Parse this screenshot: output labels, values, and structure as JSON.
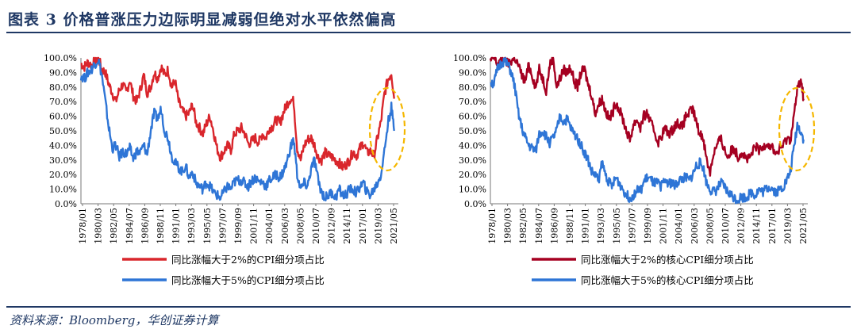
{
  "header": {
    "title": "图表 3   价格普涨压力边际明显减弱但绝对水平依然偏高"
  },
  "footer": {
    "source": "资料来源：Bloomberg，华创证券计算"
  },
  "colors": {
    "red": "#c00000",
    "darkred": "#a50021",
    "blue": "#2e75d6",
    "highlight": "#f5b700",
    "brand": "#1f3864"
  },
  "chart_data": [
    {
      "type": "line",
      "y_ticks": [
        "100.0%",
        "90.0%",
        "80.0%",
        "70.0%",
        "60.0%",
        "50.0%",
        "40.0%",
        "30.0%",
        "20.0%",
        "10.0%",
        "0.0%"
      ],
      "ylim": [
        0,
        100
      ],
      "xlim": [
        1978.0,
        2023.5
      ],
      "x_ticks": [
        "1978/01",
        "1980/03",
        "1982/05",
        "1984/07",
        "1986/09",
        "1988/11",
        "1991/01",
        "1993/03",
        "1995/05",
        "1997/07",
        "1999/09",
        "2001/11",
        "2004/01",
        "2006/03",
        "2008/05",
        "2010/07",
        "2012/09",
        "2014/11",
        "2017/01",
        "2019/03",
        "2021/05"
      ],
      "annotation": "dashed ellipse highlighting 2021–2022",
      "series": [
        {
          "name": "同比涨幅大于2%的CPI细分项占比",
          "color": "#d9262c",
          "x": [
            1978.0,
            1978.5,
            1979.0,
            1979.5,
            1980.0,
            1980.5,
            1981.0,
            1981.5,
            1982.0,
            1982.5,
            1983.0,
            1983.5,
            1984.0,
            1984.5,
            1985.0,
            1985.5,
            1986.0,
            1986.5,
            1987.0,
            1987.5,
            1988.0,
            1988.5,
            1989.0,
            1989.5,
            1990.0,
            1990.5,
            1991.0,
            1991.5,
            1992.0,
            1992.5,
            1993.0,
            1993.5,
            1994.0,
            1994.5,
            1995.0,
            1995.5,
            1996.0,
            1996.5,
            1997.0,
            1997.5,
            1998.0,
            1998.5,
            1999.0,
            1999.5,
            2000.0,
            2000.5,
            2001.0,
            2001.5,
            2002.0,
            2002.5,
            2003.0,
            2003.5,
            2004.0,
            2004.5,
            2005.0,
            2005.5,
            2006.0,
            2006.5,
            2007.0,
            2007.5,
            2008.0,
            2008.5,
            2009.0,
            2009.5,
            2010.0,
            2010.5,
            2011.0,
            2011.5,
            2012.0,
            2012.5,
            2013.0,
            2013.5,
            2014.0,
            2014.5,
            2015.0,
            2015.5,
            2016.0,
            2016.5,
            2017.0,
            2017.5,
            2018.0,
            2018.5,
            2019.0,
            2019.5,
            2020.0,
            2020.5,
            2021.0,
            2021.5,
            2022.0,
            2022.5,
            2022.9
          ],
          "values": [
            96,
            94,
            97,
            95,
            98,
            100,
            92,
            90,
            82,
            76,
            70,
            78,
            82,
            76,
            85,
            74,
            70,
            78,
            88,
            76,
            80,
            90,
            86,
            94,
            88,
            92,
            80,
            84,
            70,
            64,
            60,
            62,
            68,
            56,
            52,
            48,
            55,
            60,
            50,
            38,
            32,
            36,
            40,
            37,
            48,
            50,
            52,
            48,
            41,
            43,
            45,
            42,
            48,
            45,
            52,
            53,
            58,
            55,
            62,
            68,
            72,
            70,
            38,
            30,
            40,
            44,
            45,
            40,
            32,
            30,
            35,
            33,
            32,
            30,
            28,
            25,
            27,
            30,
            36,
            33,
            38,
            42,
            35,
            36,
            33,
            45,
            56,
            75,
            85,
            90,
            72
          ]
        },
        {
          "name": "同比涨幅大于5%的CPI细分项占比",
          "color": "#2e75d6",
          "x": [
            1978.0,
            1978.5,
            1979.0,
            1979.5,
            1980.0,
            1980.5,
            1981.0,
            1981.5,
            1982.0,
            1982.5,
            1983.0,
            1983.5,
            1984.0,
            1984.5,
            1985.0,
            1985.5,
            1986.0,
            1986.5,
            1987.0,
            1987.5,
            1988.0,
            1988.5,
            1989.0,
            1989.5,
            1990.0,
            1990.5,
            1991.0,
            1991.5,
            1992.0,
            1992.5,
            1993.0,
            1993.5,
            1994.0,
            1994.5,
            1995.0,
            1995.5,
            1996.0,
            1996.5,
            1997.0,
            1997.5,
            1998.0,
            1998.5,
            1999.0,
            1999.5,
            2000.0,
            2000.5,
            2001.0,
            2001.5,
            2002.0,
            2002.5,
            2003.0,
            2003.5,
            2004.0,
            2004.5,
            2005.0,
            2005.5,
            2006.0,
            2006.5,
            2007.0,
            2007.5,
            2008.0,
            2008.5,
            2009.0,
            2009.5,
            2010.0,
            2010.5,
            2011.0,
            2011.5,
            2012.0,
            2012.5,
            2013.0,
            2013.5,
            2014.0,
            2014.5,
            2015.0,
            2015.5,
            2016.0,
            2016.5,
            2017.0,
            2017.5,
            2018.0,
            2018.5,
            2019.0,
            2019.5,
            2020.0,
            2020.5,
            2021.0,
            2021.5,
            2022.0,
            2022.5,
            2022.9
          ],
          "values": [
            88,
            86,
            90,
            92,
            96,
            99,
            88,
            70,
            52,
            38,
            40,
            32,
            36,
            34,
            38,
            31,
            36,
            35,
            40,
            34,
            50,
            62,
            58,
            65,
            50,
            45,
            33,
            28,
            25,
            22,
            26,
            18,
            22,
            14,
            12,
            10,
            15,
            12,
            8,
            6,
            4,
            8,
            12,
            10,
            15,
            16,
            16,
            14,
            12,
            16,
            18,
            15,
            15,
            12,
            16,
            18,
            20,
            18,
            22,
            28,
            38,
            44,
            20,
            10,
            14,
            12,
            24,
            30,
            16,
            8,
            4,
            6,
            8,
            4,
            10,
            6,
            6,
            10,
            10,
            7,
            12,
            14,
            8,
            6,
            10,
            14,
            20,
            36,
            55,
            66,
            50
          ]
        }
      ]
    },
    {
      "type": "line",
      "y_ticks": [
        "100.0%",
        "90.0%",
        "80.0%",
        "70.0%",
        "60.0%",
        "50.0%",
        "40.0%",
        "30.0%",
        "20.0%",
        "10.0%",
        "0.0%"
      ],
      "ylim": [
        0,
        100
      ],
      "xlim": [
        1978.0,
        2023.5
      ],
      "x_ticks": [
        "1978/01",
        "1980/03",
        "1982/05",
        "1984/07",
        "1986/09",
        "1988/11",
        "1991/01",
        "1993/03",
        "1995/05",
        "1997/07",
        "1999/09",
        "2001/11",
        "2004/01",
        "2006/03",
        "2008/05",
        "2010/07",
        "2012/09",
        "2014/11",
        "2017/01",
        "2019/03",
        "2021/05"
      ],
      "annotation": "dashed ellipse highlighting 2021–2022",
      "series": [
        {
          "name": "同比涨幅大于2%的核心CPI细分项占比",
          "color": "#a50021",
          "x": [
            1978.0,
            1978.5,
            1979.0,
            1979.5,
            1980.0,
            1980.5,
            1981.0,
            1981.5,
            1982.0,
            1982.5,
            1983.0,
            1983.5,
            1984.0,
            1984.5,
            1985.0,
            1985.5,
            1986.0,
            1986.5,
            1987.0,
            1987.5,
            1988.0,
            1988.5,
            1989.0,
            1989.5,
            1990.0,
            1990.5,
            1991.0,
            1991.5,
            1992.0,
            1992.5,
            1993.0,
            1993.5,
            1994.0,
            1994.5,
            1995.0,
            1995.5,
            1996.0,
            1996.5,
            1997.0,
            1997.5,
            1998.0,
            1998.5,
            1999.0,
            1999.5,
            2000.0,
            2000.5,
            2001.0,
            2001.5,
            2002.0,
            2002.5,
            2003.0,
            2003.5,
            2004.0,
            2004.5,
            2005.0,
            2005.5,
            2006.0,
            2006.5,
            2007.0,
            2007.5,
            2008.0,
            2008.5,
            2009.0,
            2009.5,
            2010.0,
            2010.5,
            2011.0,
            2011.5,
            2012.0,
            2012.5,
            2013.0,
            2013.5,
            2014.0,
            2014.5,
            2015.0,
            2015.5,
            2016.0,
            2016.5,
            2017.0,
            2017.5,
            2018.0,
            2018.5,
            2019.0,
            2019.5,
            2020.0,
            2020.5,
            2021.0,
            2021.5,
            2022.0,
            2022.5,
            2022.9
          ],
          "values": [
            98,
            100,
            96,
            98,
            100,
            96,
            98,
            100,
            95,
            88,
            84,
            95,
            88,
            80,
            92,
            86,
            78,
            95,
            100,
            80,
            86,
            92,
            90,
            94,
            84,
            80,
            90,
            92,
            82,
            75,
            62,
            68,
            72,
            64,
            58,
            62,
            70,
            64,
            58,
            50,
            44,
            54,
            58,
            52,
            60,
            62,
            55,
            50,
            42,
            46,
            52,
            48,
            50,
            54,
            56,
            52,
            60,
            62,
            65,
            56,
            48,
            46,
            30,
            22,
            35,
            40,
            45,
            38,
            32,
            36,
            38,
            32,
            36,
            32,
            30,
            34,
            40,
            36,
            38,
            42,
            40,
            38,
            34,
            38,
            40,
            45,
            44,
            60,
            78,
            86,
            72
          ]
        },
        {
          "name": "同比涨幅大于5%的核心CPI细分项占比",
          "color": "#2e75d6",
          "x": [
            1978.0,
            1978.5,
            1979.0,
            1979.5,
            1980.0,
            1980.5,
            1981.0,
            1981.5,
            1982.0,
            1982.5,
            1983.0,
            1983.5,
            1984.0,
            1984.5,
            1985.0,
            1985.5,
            1986.0,
            1986.5,
            1987.0,
            1987.5,
            1988.0,
            1988.5,
            1989.0,
            1989.5,
            1990.0,
            1990.5,
            1991.0,
            1991.5,
            1992.0,
            1992.5,
            1993.0,
            1993.5,
            1994.0,
            1994.5,
            1995.0,
            1995.5,
            1996.0,
            1996.5,
            1997.0,
            1997.5,
            1998.0,
            1998.5,
            1999.0,
            1999.5,
            2000.0,
            2000.5,
            2001.0,
            2001.5,
            2002.0,
            2002.5,
            2003.0,
            2003.5,
            2004.0,
            2004.5,
            2005.0,
            2005.5,
            2006.0,
            2006.5,
            2007.0,
            2007.5,
            2008.0,
            2008.5,
            2009.0,
            2009.5,
            2010.0,
            2010.5,
            2011.0,
            2011.5,
            2012.0,
            2012.5,
            2013.0,
            2013.5,
            2014.0,
            2014.5,
            2015.0,
            2015.5,
            2016.0,
            2016.5,
            2017.0,
            2017.5,
            2018.0,
            2018.5,
            2019.0,
            2019.5,
            2020.0,
            2020.5,
            2021.0,
            2021.5,
            2022.0,
            2022.5,
            2022.9
          ],
          "values": [
            84,
            82,
            92,
            96,
            98,
            95,
            90,
            80,
            62,
            52,
            45,
            40,
            38,
            36,
            48,
            50,
            46,
            42,
            45,
            50,
            60,
            56,
            58,
            52,
            48,
            45,
            40,
            35,
            30,
            22,
            20,
            16,
            28,
            20,
            15,
            12,
            18,
            14,
            10,
            6,
            4,
            6,
            10,
            8,
            15,
            18,
            16,
            14,
            14,
            12,
            16,
            15,
            14,
            12,
            16,
            17,
            18,
            16,
            20,
            26,
            28,
            25,
            14,
            10,
            8,
            10,
            14,
            12,
            8,
            6,
            4,
            3,
            5,
            4,
            6,
            8,
            6,
            10,
            8,
            10,
            12,
            10,
            8,
            10,
            12,
            16,
            22,
            38,
            54,
            50,
            44
          ]
        }
      ]
    }
  ]
}
